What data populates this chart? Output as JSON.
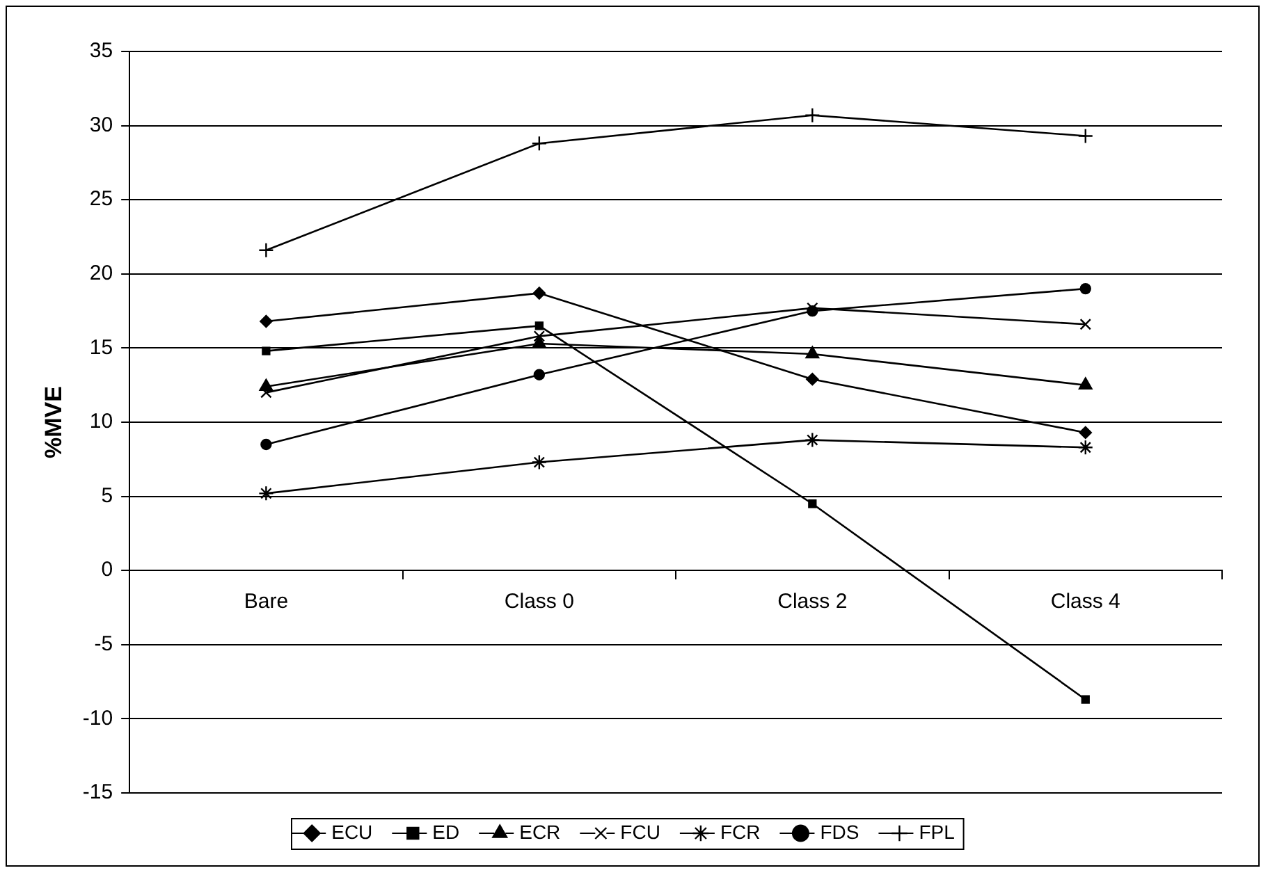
{
  "chart_data": {
    "type": "line",
    "ylabel": "%MVE",
    "categories": [
      "Bare",
      "Class 0",
      "Class 2",
      "Class 4"
    ],
    "ylim": [
      -15,
      35
    ],
    "yticks": [
      -15,
      -10,
      -5,
      0,
      5,
      10,
      15,
      20,
      25,
      30,
      35
    ],
    "grid": "y",
    "legend": "bottom",
    "line_style": "solid",
    "series": [
      {
        "name": "ECU",
        "color": "#000000",
        "marker": "diamond",
        "values": [
          16.8,
          18.7,
          12.9,
          9.3
        ]
      },
      {
        "name": "ED",
        "color": "#000000",
        "marker": "square",
        "values": [
          14.8,
          16.5,
          4.5,
          -8.7
        ]
      },
      {
        "name": "ECR",
        "color": "#000000",
        "marker": "triangle",
        "values": [
          12.4,
          15.3,
          14.6,
          12.5
        ]
      },
      {
        "name": "FCU",
        "color": "#000000",
        "marker": "x",
        "values": [
          12.0,
          15.8,
          17.7,
          16.6
        ]
      },
      {
        "name": "FCR",
        "color": "#000000",
        "marker": "cross",
        "values": [
          5.2,
          7.3,
          8.8,
          8.3
        ]
      },
      {
        "name": "FDS",
        "color": "#000000",
        "marker": "circle",
        "values": [
          8.5,
          13.2,
          17.5,
          19.0
        ]
      },
      {
        "name": "FPL",
        "color": "#000000",
        "marker": "plus",
        "values": [
          21.6,
          28.8,
          30.7,
          29.3
        ]
      }
    ]
  }
}
